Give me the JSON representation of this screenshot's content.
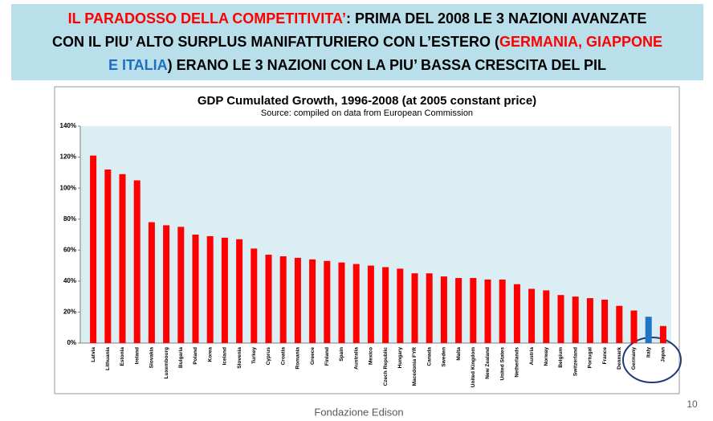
{
  "header": {
    "segments": [
      "IL PARADOSSO DELLA COMPETITIVITA’",
      ": PRIMA DEL 2008 LE 3 NAZIONI AVANZATE",
      "CON IL PIU’ ALTO SURPLUS MANIFATTURIERO CON L’ESTERO (",
      "GERMANIA, GIAPPONE",
      "E ITALIA",
      ") ERANO LE 3 NAZIONI CON LA PIU’ BASSA CRESCITA DEL PIL"
    ]
  },
  "chart_data": {
    "type": "bar",
    "title": "GDP Cumulated Growth, 1996-2008 (at 2005 constant price)",
    "subtitle": "Source: compiled on data from European Commission",
    "categories": [
      "Latvia",
      "Lithuania",
      "Estonia",
      "Ireland",
      "Slovakia",
      "Luxembourg",
      "Bulgaria",
      "Poland",
      "Korea",
      "Iceland",
      "Slovenia",
      "Turkey",
      "Cyprus",
      "Croatia",
      "Romania",
      "Greece",
      "Finland",
      "Spain",
      "Australia",
      "Mexico",
      "Czech Republic",
      "Hungary",
      "Macedonia FYR",
      "Canada",
      "Sweden",
      "Malta",
      "United Kingdom",
      "New Zealand",
      "United States",
      "Netherlands",
      "Austria",
      "Norway",
      "Belgium",
      "Switzerland",
      "Portugal",
      "France",
      "Denmark",
      "Germany",
      "Italy",
      "Japan"
    ],
    "values": [
      121,
      112,
      109,
      105,
      78,
      76,
      75,
      70,
      69,
      68,
      67,
      61,
      57,
      56,
      55,
      54,
      53,
      52,
      51,
      50,
      49,
      48,
      45,
      45,
      43,
      42,
      42,
      41,
      41,
      38,
      35,
      34,
      31,
      30,
      29,
      28,
      24,
      21,
      17,
      11
    ],
    "colors": [
      "#ff0000",
      "#ff0000",
      "#ff0000",
      "#ff0000",
      "#ff0000",
      "#ff0000",
      "#ff0000",
      "#ff0000",
      "#ff0000",
      "#ff0000",
      "#ff0000",
      "#ff0000",
      "#ff0000",
      "#ff0000",
      "#ff0000",
      "#ff0000",
      "#ff0000",
      "#ff0000",
      "#ff0000",
      "#ff0000",
      "#ff0000",
      "#ff0000",
      "#ff0000",
      "#ff0000",
      "#ff0000",
      "#ff0000",
      "#ff0000",
      "#ff0000",
      "#ff0000",
      "#ff0000",
      "#ff0000",
      "#ff0000",
      "#ff0000",
      "#ff0000",
      "#ff0000",
      "#ff0000",
      "#ff0000",
      "#ff0000",
      "#1f77c4",
      "#ff0000"
    ],
    "ylim": [
      0,
      140
    ],
    "yticks": [
      {
        "value": 0,
        "label": "0%"
      },
      {
        "value": 20,
        "label": "20%"
      },
      {
        "value": 40,
        "label": "40%"
      },
      {
        "value": 60,
        "label": "60%"
      },
      {
        "value": 80,
        "label": "80%"
      },
      {
        "value": 100,
        "label": "100%"
      },
      {
        "value": 120,
        "label": "120%"
      },
      {
        "value": 140,
        "label": "140%"
      }
    ],
    "grid": false
  },
  "footer": {
    "source": "Fondazione Edison",
    "page": "10"
  }
}
